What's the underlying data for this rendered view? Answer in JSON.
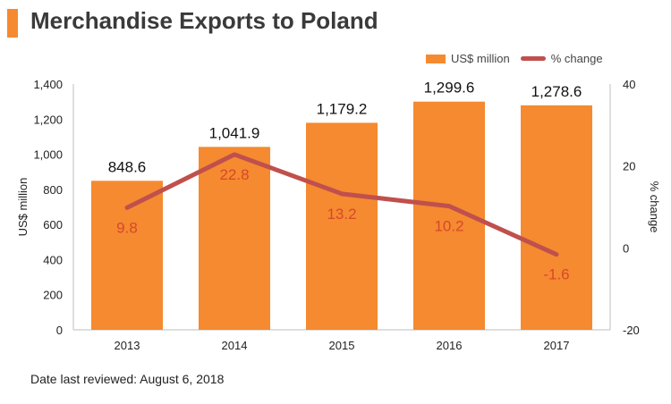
{
  "header": {
    "title": "Merchandise Exports to Poland"
  },
  "legend": {
    "bar_label": "US$ million",
    "line_label": "% change"
  },
  "footer": {
    "note": "Date last reviewed: August 6, 2018"
  },
  "colors": {
    "bar": "#f58a30",
    "line": "#c0504d",
    "pct_label": "#d9472b",
    "title_accent": "#f58a30"
  },
  "chart_data": {
    "type": "bar",
    "categories": [
      "2013",
      "2014",
      "2015",
      "2016",
      "2017"
    ],
    "series": [
      {
        "name": "US$ million",
        "type": "bar",
        "axis": "left",
        "values": [
          848.6,
          1041.9,
          1179.2,
          1299.6,
          1278.6
        ],
        "labels": [
          "848.6",
          "1,041.9",
          "1,179.2",
          "1,299.6",
          "1,278.6"
        ]
      },
      {
        "name": "% change",
        "type": "line",
        "axis": "right",
        "values": [
          9.8,
          22.8,
          13.2,
          10.2,
          -1.6
        ],
        "labels": [
          "9.8",
          "22.8",
          "13.2",
          "10.2",
          "-1.6"
        ]
      }
    ],
    "ylabel": "US$ million",
    "y2label": "% change",
    "ylim": [
      0,
      1400
    ],
    "y2lim": [
      -20,
      40
    ],
    "yticks": [
      "0",
      "200",
      "400",
      "600",
      "800",
      "1,000",
      "1,200",
      "1,400"
    ],
    "y2ticks": [
      "-20",
      "0",
      "20",
      "40"
    ],
    "grid": false,
    "legend_position": "top-right"
  }
}
